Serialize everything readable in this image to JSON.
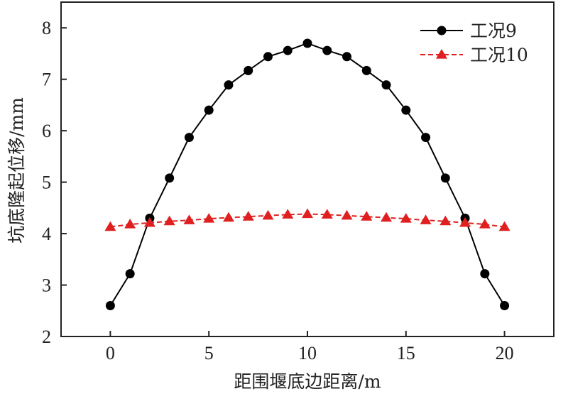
{
  "chart_data": {
    "type": "line",
    "xlabel": "距围堰底边距离/m",
    "ylabel": "坑底隆起位移/mm",
    "xlim": [
      -2.5,
      22.5
    ],
    "ylim": [
      2,
      8.5
    ],
    "x_ticks": [
      0,
      5,
      10,
      15,
      20
    ],
    "y_ticks": [
      2,
      3,
      4,
      5,
      6,
      7,
      8
    ],
    "grid": false,
    "legend_position": "top-right",
    "x": [
      0,
      1,
      2,
      3,
      4,
      5,
      6,
      7,
      8,
      9,
      10,
      11,
      12,
      13,
      14,
      15,
      16,
      17,
      18,
      19,
      20
    ],
    "series": [
      {
        "name": "工况9",
        "color": "#000000",
        "line_style": "solid",
        "marker": "circle",
        "values": [
          2.6,
          3.22,
          4.3,
          5.08,
          5.87,
          6.4,
          6.89,
          7.17,
          7.44,
          7.56,
          7.7,
          7.56,
          7.44,
          7.17,
          6.89,
          6.4,
          5.87,
          5.08,
          4.3,
          3.22,
          2.6
        ]
      },
      {
        "name": "工况10",
        "color": "#e02020",
        "line_style": "dashed",
        "marker": "triangle",
        "values": [
          4.13,
          4.18,
          4.21,
          4.24,
          4.26,
          4.29,
          4.31,
          4.33,
          4.35,
          4.37,
          4.38,
          4.37,
          4.35,
          4.33,
          4.31,
          4.29,
          4.26,
          4.24,
          4.21,
          4.18,
          4.13
        ]
      }
    ]
  }
}
